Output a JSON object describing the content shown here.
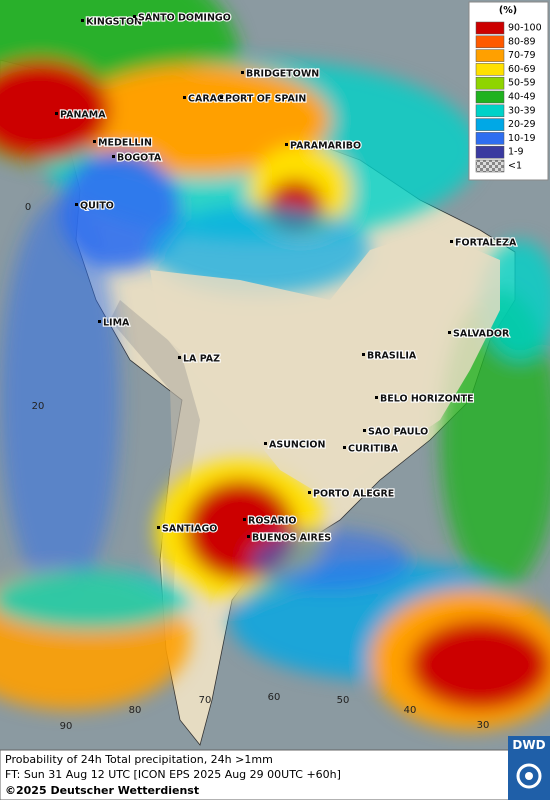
{
  "legend": {
    "title": "(%)",
    "items": [
      {
        "label": "90-100",
        "color": "#cc0000"
      },
      {
        "label": "80-89",
        "color": "#ff5a00"
      },
      {
        "label": "70-79",
        "color": "#ffa000"
      },
      {
        "label": "60-69",
        "color": "#ffe000"
      },
      {
        "label": "50-59",
        "color": "#8fd400"
      },
      {
        "label": "40-49",
        "color": "#1fb21f"
      },
      {
        "label": "30-39",
        "color": "#00d2c8"
      },
      {
        "label": "20-29",
        "color": "#00a8e6"
      },
      {
        "label": "10-19",
        "color": "#2e6ef0"
      },
      {
        "label": "1-9",
        "color": "#3a3aa0"
      },
      {
        "label": "<1",
        "color": "#aaaaaa"
      }
    ]
  },
  "cities": [
    "KINGSTON",
    "SANTO DOMINGO",
    "BRIDGETOWN",
    "CARACAS",
    "PORT OF SPAIN",
    "PANAMA",
    "MEDELLIN",
    "BOGOTA",
    "PARAMARIBO",
    "QUITO",
    "FORTALEZA",
    "LIMA",
    "SALVADOR",
    "LA PAZ",
    "BRASILIA",
    "BELO HORIZONTE",
    "SAO PAULO",
    "ASUNCION",
    "CURITIBA",
    "PORTO ALEGRE",
    "SANTIAGO",
    "ROSARIO",
    "BUENOS AIRES"
  ],
  "grid_labels": [
    "0",
    "20",
    "90",
    "80",
    "70",
    "60",
    "50",
    "40",
    "30"
  ],
  "footer": {
    "line1": "Probability of 24h Total precipitation, 24h >1mm",
    "line2": "FT: Sun 31 Aug 12 UTC [ICON EPS 2025 Aug 29 00UTC +60h]",
    "copyright": "©2025 Deutscher Wetterdienst",
    "logo": "DWD"
  }
}
